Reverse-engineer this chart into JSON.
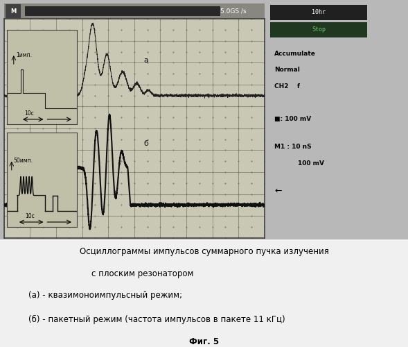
{
  "bg_color": "#b8b8b8",
  "screen_bg": "#c8c8b4",
  "grid_color": "#909080",
  "caption_line1": "Осциллограммы импульсов суммарного пучка излучения",
  "caption_line2": "с плоским резонатором",
  "caption_line3": "(а) - квазимоноимпульсный режим;",
  "caption_line4": "(б) - пакетный режим (частота импульсов в пакете 11 кГц)",
  "caption_line5": "Фиг. 5",
  "header_text": "5.0GS /s",
  "label_10hr": "10hr",
  "label_stop": "Stop",
  "accumulate": "Accumulate",
  "normal": "Normal",
  "ch2": "CH2    f",
  "mv100": "■: 100 mV",
  "m1": "M1 : 10 nS",
  "mv100_2": "100 mV",
  "inset1_label": "1имп.",
  "inset1_arrow": "10с",
  "inset2_label": "50имп.",
  "inset2_arrow": "10с",
  "label_a": "а",
  "label_b": "б"
}
